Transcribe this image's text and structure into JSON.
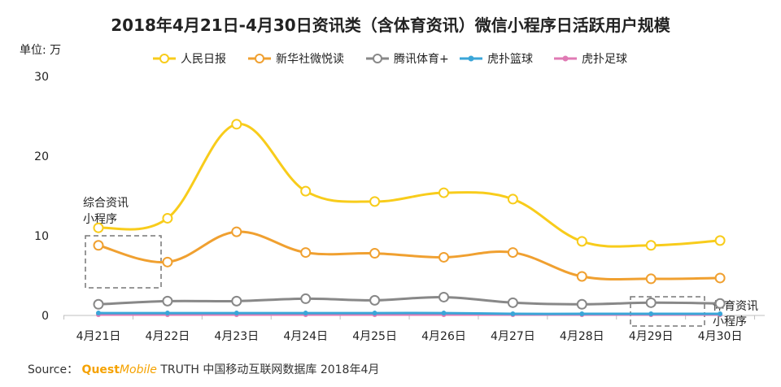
{
  "chart_data": {
    "type": "line",
    "title": "2018年4月21日-4月30日资讯类（含体育资讯）微信小程序日活跃用户规模",
    "unit_label": "单位: 万",
    "categories": [
      "4月21日",
      "4月22日",
      "4月23日",
      "4月24日",
      "4月25日",
      "4月26日",
      "4月27日",
      "4月28日",
      "4月29日",
      "4月30日"
    ],
    "ylim": [
      0,
      30
    ],
    "yticks": [
      0,
      10,
      20,
      30
    ],
    "grid": false,
    "legend_position": "top",
    "series": [
      {
        "name": "人民日报",
        "color": "#f8cc1b",
        "marker": "hollow-circle",
        "values": [
          11.0,
          12.2,
          24.0,
          15.6,
          14.3,
          15.4,
          14.6,
          9.3,
          8.8,
          9.4
        ]
      },
      {
        "name": "新华社微悦读",
        "color": "#f0a030",
        "marker": "hollow-circle",
        "values": [
          8.8,
          6.7,
          10.5,
          7.9,
          7.8,
          7.3,
          7.9,
          4.9,
          4.6,
          4.7
        ]
      },
      {
        "name": "腾讯体育+",
        "color": "#888888",
        "marker": "hollow-circle",
        "values": [
          1.4,
          1.8,
          1.8,
          2.1,
          1.9,
          2.3,
          1.6,
          1.4,
          1.6,
          1.5
        ]
      },
      {
        "name": "虎扑篮球",
        "color": "#3aa6d8",
        "marker": "dot",
        "values": [
          0.3,
          0.3,
          0.3,
          0.3,
          0.3,
          0.3,
          0.2,
          0.2,
          0.2,
          0.2
        ]
      },
      {
        "name": "虎扑足球",
        "color": "#e07ab4",
        "marker": "dot",
        "values": [
          0.1,
          0.1,
          0.1,
          0.1,
          0.1,
          0.1,
          0.1,
          0.1,
          0.1,
          0.1
        ]
      }
    ],
    "annotations": [
      {
        "id": "comprehensive",
        "lines": [
          "综合资讯",
          "小程序"
        ]
      },
      {
        "id": "sports",
        "lines": [
          "体育资讯",
          "小程序"
        ]
      }
    ]
  },
  "source": {
    "label": "Source：",
    "brand_part1": "Quest",
    "brand_part2": "Mobile",
    "rest": " TRUTH 中国移动互联网数据库 2018年4月"
  }
}
